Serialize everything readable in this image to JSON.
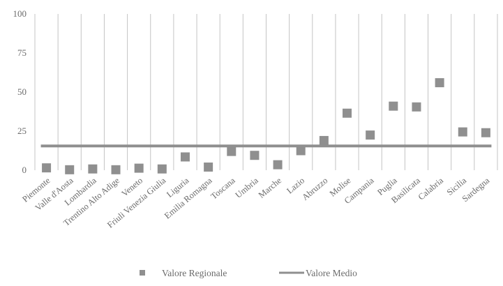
{
  "chart_data": {
    "type": "scatter",
    "title": "",
    "xlabel": "",
    "ylabel": "",
    "ylim": [
      0,
      100
    ],
    "yticks": [
      0,
      25,
      50,
      75,
      100
    ],
    "grid": "vertical",
    "legend_position": "bottom",
    "categories": [
      "Piemonte",
      "Valle d'Aosta",
      "Lombardia",
      "Trentino Alto Adige",
      "Veneto",
      "Friuli Venezia Giulia",
      "Liguria",
      "Emilia Romagna",
      "Toscana",
      "Umbria",
      "Marche",
      "Lazio",
      "Abruzzo",
      "Molise",
      "Campania",
      "Puglia",
      "Basilicata",
      "Calabria",
      "Sicilia",
      "Sardegna"
    ],
    "series": [
      {
        "name": "Valore Regionale",
        "kind": "marker",
        "color": "#8f8f8f",
        "values": [
          1.5,
          0.3,
          0.8,
          0.3,
          1.3,
          0.8,
          8.5,
          2.0,
          12.0,
          9.5,
          3.5,
          12.5,
          19.0,
          36.5,
          22.5,
          41.0,
          40.5,
          56.0,
          24.5,
          24.0
        ]
      },
      {
        "name": "Valore Medio",
        "kind": "line",
        "color": "#8f8f8f",
        "value": 15.5
      }
    ]
  }
}
